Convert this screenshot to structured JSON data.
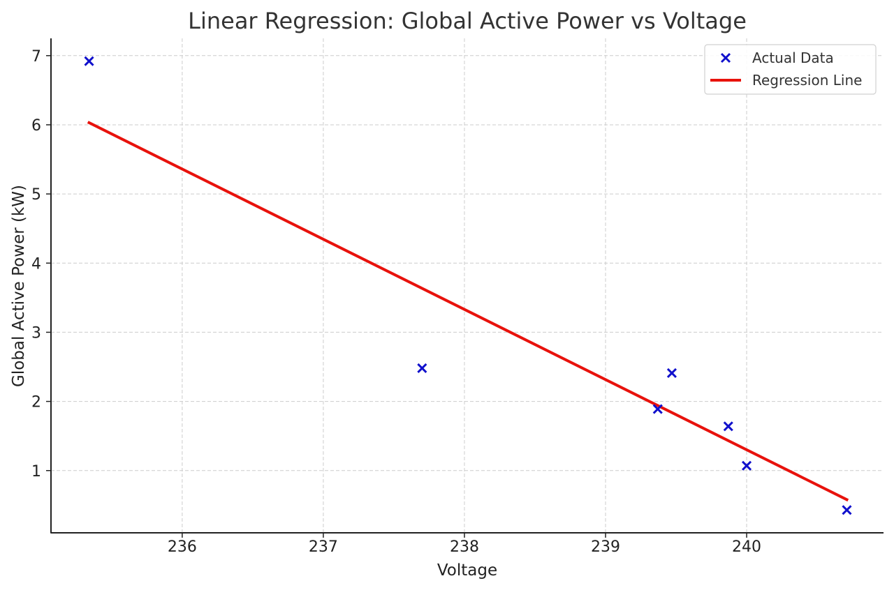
{
  "chart_data": {
    "type": "scatter",
    "title": "Linear Regression: Global Active Power vs Voltage",
    "xlabel": "Voltage",
    "ylabel": "Global Active Power (kW)",
    "xlim": [
      235.07,
      240.97
    ],
    "ylim": [
      0.1,
      7.25
    ],
    "xticks": [
      236,
      237,
      238,
      239,
      240
    ],
    "yticks": [
      1,
      2,
      3,
      4,
      5,
      6,
      7
    ],
    "grid": true,
    "legend_position": "top-right",
    "colors": {
      "points": "#1010cc",
      "line": "#e8120c",
      "grid": "#cccccc",
      "axis": "#222222"
    },
    "series": [
      {
        "name": "Actual Data",
        "kind": "scatter",
        "marker": "x",
        "x": [
          235.34,
          237.7,
          239.37,
          239.47,
          239.87,
          240.0,
          240.71
        ],
        "y": [
          6.92,
          2.48,
          1.89,
          2.41,
          1.64,
          1.07,
          0.43
        ]
      },
      {
        "name": "Regression Line",
        "kind": "line",
        "x": [
          235.34,
          240.71
        ],
        "y": [
          6.03,
          0.58
        ]
      }
    ]
  }
}
